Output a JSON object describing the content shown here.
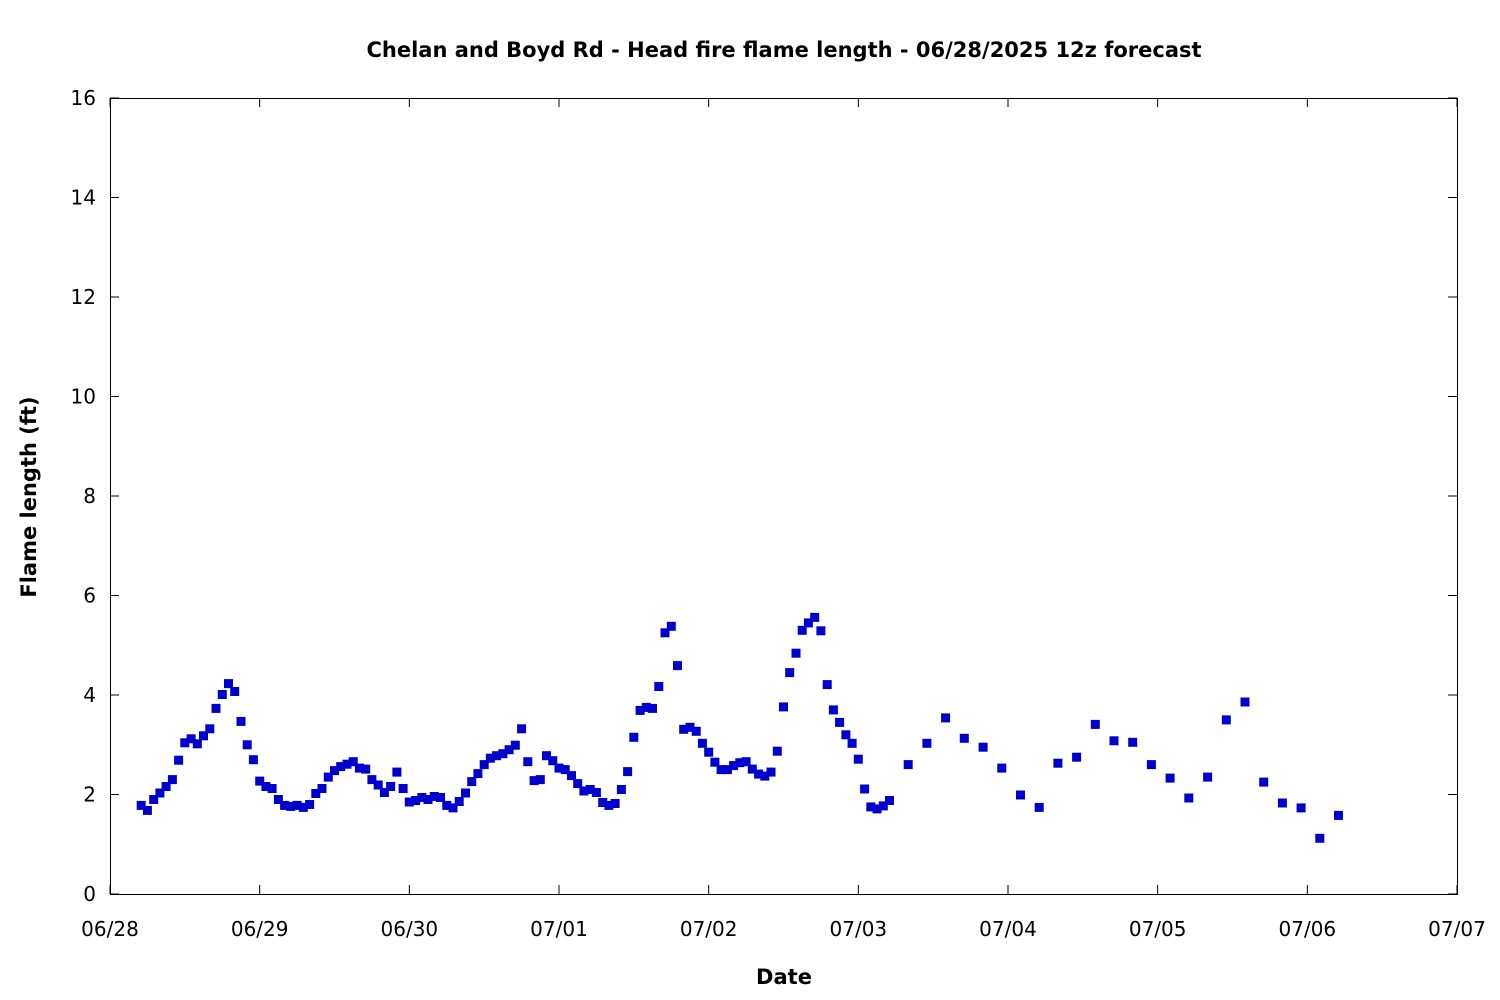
{
  "chart_data": {
    "type": "scatter",
    "title": "Chelan and Boyd Rd - Head fire flame length - 06/28/2025 12z forecast",
    "xlabel": "Date",
    "ylabel": "Flame length (ft)",
    "ylim": [
      0,
      16
    ],
    "xlim": [
      "2025-06-28T00:00",
      "2025-07-07T00:00"
    ],
    "grid": false,
    "marker_color": "#0000cc",
    "x_tick_labels": [
      "06/28",
      "06/29",
      "06/30",
      "07/01",
      "07/02",
      "07/03",
      "07/04",
      "07/05",
      "07/06",
      "07/07"
    ],
    "y_tick_labels": [
      "0",
      "2",
      "4",
      "6",
      "8",
      "10",
      "12",
      "14",
      "16"
    ],
    "series": [
      {
        "points": [
          [
            "2025-06-28T05:00",
            1.78
          ],
          [
            "2025-06-28T06:00",
            1.68
          ],
          [
            "2025-06-28T07:00",
            1.9
          ],
          [
            "2025-06-28T08:00",
            2.03
          ],
          [
            "2025-06-28T09:00",
            2.16
          ],
          [
            "2025-06-28T10:00",
            2.3
          ],
          [
            "2025-06-28T11:00",
            2.69
          ],
          [
            "2025-06-28T12:00",
            3.04
          ],
          [
            "2025-06-28T13:00",
            3.12
          ],
          [
            "2025-06-28T14:00",
            3.02
          ],
          [
            "2025-06-28T15:00",
            3.18
          ],
          [
            "2025-06-28T16:00",
            3.32
          ],
          [
            "2025-06-28T17:00",
            3.73
          ],
          [
            "2025-06-28T18:00",
            4.01
          ],
          [
            "2025-06-28T19:00",
            4.23
          ],
          [
            "2025-06-28T20:00",
            4.07
          ],
          [
            "2025-06-28T21:00",
            3.47
          ],
          [
            "2025-06-28T22:00",
            3.0
          ],
          [
            "2025-06-28T23:00",
            2.7
          ],
          [
            "2025-06-29T00:00",
            2.27
          ],
          [
            "2025-06-29T01:00",
            2.16
          ],
          [
            "2025-06-29T02:00",
            2.12
          ],
          [
            "2025-06-29T03:00",
            1.9
          ],
          [
            "2025-06-29T04:00",
            1.78
          ],
          [
            "2025-06-29T05:00",
            1.76
          ],
          [
            "2025-06-29T06:00",
            1.78
          ],
          [
            "2025-06-29T07:00",
            1.74
          ],
          [
            "2025-06-29T08:00",
            1.8
          ],
          [
            "2025-06-29T09:00",
            2.02
          ],
          [
            "2025-06-29T10:00",
            2.12
          ],
          [
            "2025-06-29T11:00",
            2.35
          ],
          [
            "2025-06-29T12:00",
            2.48
          ],
          [
            "2025-06-29T13:00",
            2.56
          ],
          [
            "2025-06-29T14:00",
            2.61
          ],
          [
            "2025-06-29T15:00",
            2.66
          ],
          [
            "2025-06-29T16:00",
            2.53
          ],
          [
            "2025-06-29T17:00",
            2.51
          ],
          [
            "2025-06-29T18:00",
            2.3
          ],
          [
            "2025-06-29T19:00",
            2.19
          ],
          [
            "2025-06-29T20:00",
            2.04
          ],
          [
            "2025-06-29T21:00",
            2.16
          ],
          [
            "2025-06-29T22:00",
            2.45
          ],
          [
            "2025-06-29T23:00",
            2.12
          ],
          [
            "2025-06-30T00:00",
            1.85
          ],
          [
            "2025-06-30T01:00",
            1.88
          ],
          [
            "2025-06-30T02:00",
            1.94
          ],
          [
            "2025-06-30T03:00",
            1.9
          ],
          [
            "2025-06-30T04:00",
            1.96
          ],
          [
            "2025-06-30T05:00",
            1.94
          ],
          [
            "2025-06-30T06:00",
            1.78
          ],
          [
            "2025-06-30T07:00",
            1.73
          ],
          [
            "2025-06-30T08:00",
            1.86
          ],
          [
            "2025-06-30T09:00",
            2.03
          ],
          [
            "2025-06-30T10:00",
            2.26
          ],
          [
            "2025-06-30T11:00",
            2.42
          ],
          [
            "2025-06-30T12:00",
            2.6
          ],
          [
            "2025-06-30T13:00",
            2.73
          ],
          [
            "2025-06-30T14:00",
            2.78
          ],
          [
            "2025-06-30T15:00",
            2.82
          ],
          [
            "2025-06-30T16:00",
            2.9
          ],
          [
            "2025-06-30T17:00",
            2.99
          ],
          [
            "2025-06-30T18:00",
            3.32
          ],
          [
            "2025-06-30T19:00",
            2.66
          ],
          [
            "2025-06-30T20:00",
            2.28
          ],
          [
            "2025-06-30T21:00",
            2.3
          ],
          [
            "2025-06-30T22:00",
            2.78
          ],
          [
            "2025-06-30T23:00",
            2.68
          ],
          [
            "2025-07-01T00:00",
            2.53
          ],
          [
            "2025-07-01T01:00",
            2.5
          ],
          [
            "2025-07-01T02:00",
            2.38
          ],
          [
            "2025-07-01T03:00",
            2.22
          ],
          [
            "2025-07-01T04:00",
            2.07
          ],
          [
            "2025-07-01T05:00",
            2.1
          ],
          [
            "2025-07-01T06:00",
            2.04
          ],
          [
            "2025-07-01T07:00",
            1.84
          ],
          [
            "2025-07-01T08:00",
            1.78
          ],
          [
            "2025-07-01T09:00",
            1.82
          ],
          [
            "2025-07-01T10:00",
            2.1
          ],
          [
            "2025-07-01T11:00",
            2.46
          ],
          [
            "2025-07-01T12:00",
            3.15
          ],
          [
            "2025-07-01T13:00",
            3.69
          ],
          [
            "2025-07-01T14:00",
            3.75
          ],
          [
            "2025-07-01T15:00",
            3.73
          ],
          [
            "2025-07-01T16:00",
            4.17
          ],
          [
            "2025-07-01T17:00",
            5.25
          ],
          [
            "2025-07-01T18:00",
            5.38
          ],
          [
            "2025-07-01T19:00",
            4.59
          ],
          [
            "2025-07-01T20:00",
            3.31
          ],
          [
            "2025-07-01T21:00",
            3.35
          ],
          [
            "2025-07-01T22:00",
            3.27
          ],
          [
            "2025-07-01T23:00",
            3.03
          ],
          [
            "2025-07-02T00:00",
            2.85
          ],
          [
            "2025-07-02T01:00",
            2.65
          ],
          [
            "2025-07-02T02:00",
            2.5
          ],
          [
            "2025-07-02T03:00",
            2.5
          ],
          [
            "2025-07-02T04:00",
            2.58
          ],
          [
            "2025-07-02T05:00",
            2.64
          ],
          [
            "2025-07-02T06:00",
            2.66
          ],
          [
            "2025-07-02T07:00",
            2.51
          ],
          [
            "2025-07-02T08:00",
            2.41
          ],
          [
            "2025-07-02T09:00",
            2.37
          ],
          [
            "2025-07-02T10:00",
            2.45
          ],
          [
            "2025-07-02T11:00",
            2.87
          ],
          [
            "2025-07-02T12:00",
            3.76
          ],
          [
            "2025-07-02T13:00",
            4.45
          ],
          [
            "2025-07-02T14:00",
            4.84
          ],
          [
            "2025-07-02T15:00",
            5.3
          ],
          [
            "2025-07-02T16:00",
            5.45
          ],
          [
            "2025-07-02T17:00",
            5.56
          ],
          [
            "2025-07-02T18:00",
            5.29
          ],
          [
            "2025-07-02T19:00",
            4.21
          ],
          [
            "2025-07-02T20:00",
            3.7
          ],
          [
            "2025-07-02T21:00",
            3.45
          ],
          [
            "2025-07-02T22:00",
            3.2
          ],
          [
            "2025-07-02T23:00",
            3.03
          ],
          [
            "2025-07-03T00:00",
            2.71
          ],
          [
            "2025-07-03T01:00",
            2.11
          ],
          [
            "2025-07-03T02:00",
            1.75
          ],
          [
            "2025-07-03T03:00",
            1.71
          ],
          [
            "2025-07-03T04:00",
            1.77
          ],
          [
            "2025-07-03T05:00",
            1.88
          ],
          [
            "2025-07-03T08:00",
            2.6
          ],
          [
            "2025-07-03T11:00",
            3.03
          ],
          [
            "2025-07-03T14:00",
            3.54
          ],
          [
            "2025-07-03T17:00",
            3.13
          ],
          [
            "2025-07-03T20:00",
            2.95
          ],
          [
            "2025-07-03T23:00",
            2.53
          ],
          [
            "2025-07-04T02:00",
            1.99
          ],
          [
            "2025-07-04T05:00",
            1.74
          ],
          [
            "2025-07-04T08:00",
            2.63
          ],
          [
            "2025-07-04T11:00",
            2.75
          ],
          [
            "2025-07-04T14:00",
            3.41
          ],
          [
            "2025-07-04T17:00",
            3.08
          ],
          [
            "2025-07-04T20:00",
            3.05
          ],
          [
            "2025-07-04T23:00",
            2.6
          ],
          [
            "2025-07-05T02:00",
            2.33
          ],
          [
            "2025-07-05T05:00",
            1.93
          ],
          [
            "2025-07-05T08:00",
            2.35
          ],
          [
            "2025-07-05T11:00",
            3.5
          ],
          [
            "2025-07-05T14:00",
            3.86
          ],
          [
            "2025-07-05T17:00",
            2.25
          ],
          [
            "2025-07-05T20:00",
            1.83
          ],
          [
            "2025-07-05T23:00",
            1.73
          ],
          [
            "2025-07-06T02:00",
            1.12
          ],
          [
            "2025-07-06T05:00",
            1.58
          ]
        ]
      }
    ]
  }
}
